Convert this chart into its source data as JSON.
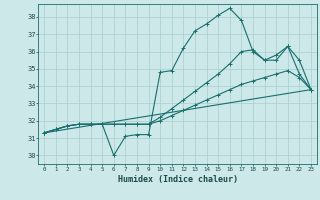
{
  "xlabel": "Humidex (Indice chaleur)",
  "background_color": "#cce8e8",
  "grid_color": "#aacece",
  "line_color": "#1a6e6e",
  "xlim": [
    -0.5,
    23.5
  ],
  "ylim": [
    29.5,
    38.75
  ],
  "xticks": [
    0,
    1,
    2,
    3,
    4,
    5,
    6,
    7,
    8,
    9,
    10,
    11,
    12,
    13,
    14,
    15,
    16,
    17,
    18,
    19,
    20,
    21,
    22,
    23
  ],
  "yticks": [
    30,
    31,
    32,
    33,
    34,
    35,
    36,
    37,
    38
  ],
  "line1_x": [
    0,
    1,
    2,
    3,
    4,
    5,
    6,
    7,
    8,
    9,
    10,
    11,
    12,
    13,
    14,
    15,
    16,
    17,
    18,
    19,
    20,
    21,
    22,
    23
  ],
  "line1_y": [
    31.3,
    31.5,
    31.7,
    31.8,
    31.8,
    31.8,
    30.0,
    31.1,
    31.2,
    31.2,
    34.8,
    34.9,
    36.2,
    37.2,
    37.6,
    38.1,
    38.5,
    37.8,
    36.0,
    35.5,
    35.8,
    36.3,
    34.7,
    33.8
  ],
  "line2_x": [
    0,
    1,
    2,
    3,
    4,
    5,
    6,
    7,
    8,
    9,
    10,
    11,
    12,
    13,
    14,
    15,
    16,
    17,
    18,
    19,
    20,
    21,
    22,
    23
  ],
  "line2_y": [
    31.3,
    31.5,
    31.7,
    31.8,
    31.8,
    31.8,
    31.8,
    31.8,
    31.8,
    31.8,
    32.2,
    32.7,
    33.2,
    33.7,
    34.2,
    34.7,
    35.3,
    36.0,
    36.1,
    35.5,
    35.5,
    36.3,
    35.5,
    33.8
  ],
  "line3_x": [
    0,
    1,
    2,
    3,
    4,
    5,
    6,
    7,
    8,
    9,
    10,
    11,
    12,
    13,
    14,
    15,
    16,
    17,
    18,
    19,
    20,
    21,
    22,
    23
  ],
  "line3_y": [
    31.3,
    31.5,
    31.7,
    31.8,
    31.8,
    31.8,
    31.8,
    31.8,
    31.8,
    31.8,
    32.0,
    32.3,
    32.6,
    32.9,
    33.2,
    33.5,
    33.8,
    34.1,
    34.3,
    34.5,
    34.7,
    34.9,
    34.5,
    33.8
  ],
  "line4_x": [
    0,
    23
  ],
  "line4_y": [
    31.3,
    33.8
  ]
}
